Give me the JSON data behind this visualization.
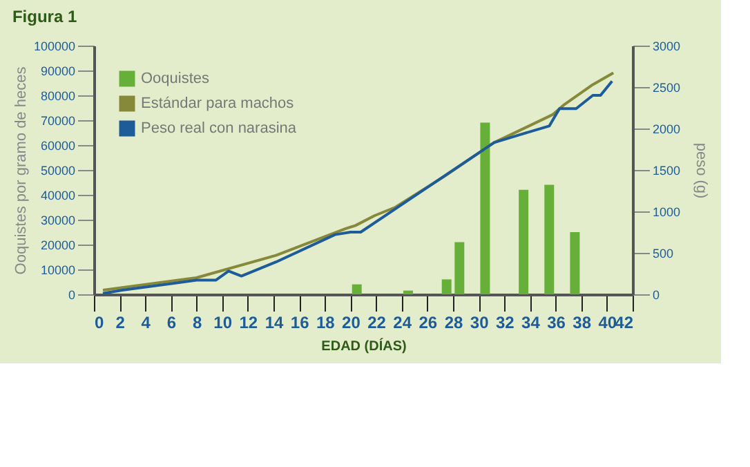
{
  "chart_data": {
    "type": "line",
    "title": "Figura 1",
    "xlabel": "EDAD (DÍAS)",
    "ylabel": "Ooquistes por gramo de heces",
    "y2label": "peso (g)",
    "xlim": [
      0,
      42
    ],
    "xticks": [
      0,
      2,
      4,
      6,
      8,
      10,
      12,
      14,
      16,
      18,
      20,
      22,
      24,
      26,
      28,
      30,
      32,
      34,
      36,
      38,
      40,
      42
    ],
    "ylim": [
      0,
      100000
    ],
    "yticks": [
      0,
      10000,
      20000,
      30000,
      40000,
      50000,
      60000,
      70000,
      80000,
      90000,
      100000
    ],
    "y2lim": [
      0,
      3000
    ],
    "y2ticks": [
      0,
      500,
      1000,
      1500,
      2000,
      2500,
      3000
    ],
    "grid": false,
    "legend": "top left",
    "series": [
      {
        "name": "Ooquistes",
        "type": "bar",
        "color": "#66b03a",
        "x": [
          20.5,
          24.5,
          27.5,
          28.5,
          30.5,
          33.5,
          35.5,
          37.5
        ],
        "values": [
          4000,
          1500,
          6000,
          21000,
          69000,
          42000,
          44000,
          25000
        ]
      },
      {
        "name": "Estándar para machos",
        "axis": "y2",
        "color": "#86893a",
        "x": [
          0.7,
          8,
          14.2,
          19.6,
          20.4,
          21.9,
          23.5,
          27.3,
          31.2,
          33.1,
          35.8,
          36.6,
          38.9,
          40.5
        ],
        "values": [
          50,
          200,
          470,
          790,
          830,
          950,
          1050,
          1420,
          1830,
          1970,
          2170,
          2280,
          2530,
          2670
        ]
      },
      {
        "name": "Peso real con narasina",
        "axis": "y2",
        "color": "#1d5c99",
        "x": [
          0.7,
          2.2,
          8,
          9.5,
          10.5,
          11.5,
          14.2,
          18.8,
          20,
          20.8,
          23.5,
          31.2,
          33.1,
          35.5,
          36.3,
          37.6,
          38.9,
          39.5,
          40.4
        ],
        "values": [
          10,
          50,
          170,
          170,
          280,
          220,
          390,
          720,
          750,
          750,
          1030,
          1830,
          1920,
          2030,
          2240,
          2240,
          2400,
          2400,
          2570
        ]
      }
    ]
  }
}
